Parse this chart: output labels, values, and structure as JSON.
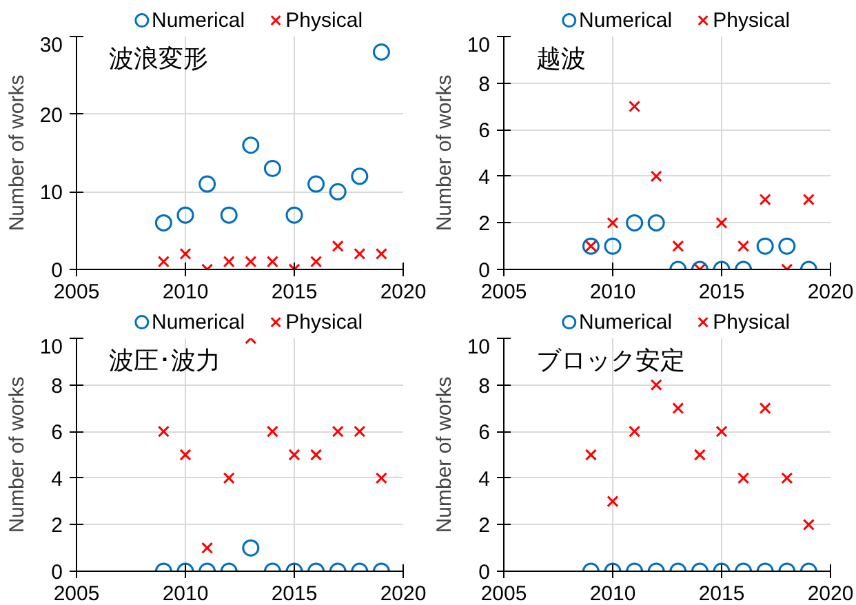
{
  "chart_data": [
    {
      "type": "scatter",
      "title": "波浪変形",
      "ylabel": "Number of works",
      "x": [
        2009,
        2010,
        2011,
        2012,
        2013,
        2014,
        2015,
        2016,
        2017,
        2018,
        2019
      ],
      "xlim": [
        2005,
        2020
      ],
      "xticks": [
        2005,
        2010,
        2015,
        2020
      ],
      "ylim": [
        0,
        30
      ],
      "yticks": [
        0,
        10,
        20,
        30
      ],
      "grid": true,
      "legend": "top",
      "series": [
        {
          "name": "Numerical",
          "color": "#0070c0",
          "marker": "circle",
          "values": [
            6,
            7,
            11,
            7,
            16,
            13,
            7,
            11,
            10,
            12,
            28
          ]
        },
        {
          "name": "Physical",
          "color": "#ff0000",
          "marker": "cross",
          "values": [
            1,
            2,
            0,
            1,
            1,
            1,
            0,
            1,
            3,
            2,
            2
          ]
        }
      ]
    },
    {
      "type": "scatter",
      "title": "越波",
      "ylabel": "Number of works",
      "x": [
        2009,
        2010,
        2011,
        2012,
        2013,
        2014,
        2015,
        2016,
        2017,
        2018,
        2019
      ],
      "xlim": [
        2005,
        2020
      ],
      "xticks": [
        2005,
        2010,
        2015,
        2020
      ],
      "ylim": [
        0,
        10
      ],
      "yticks": [
        0,
        2,
        4,
        6,
        8,
        10
      ],
      "grid": true,
      "legend": "top",
      "series": [
        {
          "name": "Numerical",
          "color": "#0070c0",
          "marker": "circle",
          "values": [
            1,
            1,
            2,
            2,
            0,
            0,
            0,
            0,
            1,
            1,
            0
          ]
        },
        {
          "name": "Physical",
          "color": "#ff0000",
          "marker": "cross",
          "values": [
            1,
            2,
            7,
            4,
            1,
            0,
            2,
            1,
            3,
            0,
            3
          ]
        }
      ]
    },
    {
      "type": "scatter",
      "title": "波圧･波力",
      "ylabel": "Number of works",
      "x": [
        2009,
        2010,
        2011,
        2012,
        2013,
        2014,
        2015,
        2016,
        2017,
        2018,
        2019
      ],
      "xlim": [
        2005,
        2020
      ],
      "xticks": [
        2005,
        2010,
        2015,
        2020
      ],
      "ylim": [
        0,
        10
      ],
      "yticks": [
        0,
        2,
        4,
        6,
        8,
        10
      ],
      "grid": true,
      "legend": "top",
      "series": [
        {
          "name": "Numerical",
          "color": "#0070c0",
          "marker": "circle",
          "values": [
            0,
            0,
            0,
            0,
            1,
            0,
            0,
            0,
            0,
            0,
            0
          ]
        },
        {
          "name": "Physical",
          "color": "#ff0000",
          "marker": "cross",
          "values": [
            6,
            5,
            1,
            4,
            10,
            6,
            5,
            5,
            6,
            6,
            4
          ]
        }
      ]
    },
    {
      "type": "scatter",
      "title": "ブロック安定",
      "ylabel": "Number of works",
      "x": [
        2009,
        2010,
        2011,
        2012,
        2013,
        2014,
        2015,
        2016,
        2017,
        2018,
        2019
      ],
      "xlim": [
        2005,
        2020
      ],
      "xticks": [
        2005,
        2010,
        2015,
        2020
      ],
      "ylim": [
        0,
        10
      ],
      "yticks": [
        0,
        2,
        4,
        6,
        8,
        10
      ],
      "grid": true,
      "legend": "top",
      "series": [
        {
          "name": "Numerical",
          "color": "#0070c0",
          "marker": "circle",
          "values": [
            0,
            0,
            0,
            0,
            0,
            0,
            0,
            0,
            0,
            0,
            0
          ]
        },
        {
          "name": "Physical",
          "color": "#ff0000",
          "marker": "cross",
          "values": [
            5,
            3,
            6,
            8,
            7,
            5,
            6,
            4,
            7,
            4,
            2
          ]
        }
      ]
    }
  ]
}
